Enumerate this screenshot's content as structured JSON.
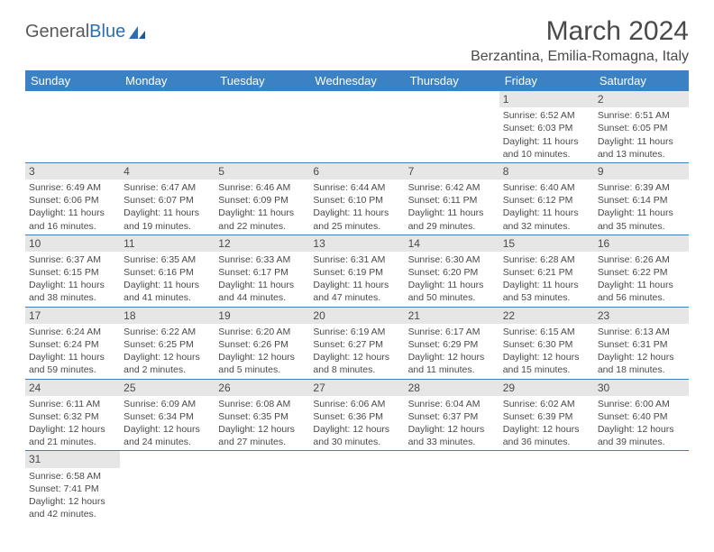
{
  "logo": {
    "text1": "General",
    "text2": "Blue"
  },
  "title": "March 2024",
  "location": "Berzantina, Emilia-Romagna, Italy",
  "colors": {
    "header_bg": "#3b82c4",
    "header_text": "#ffffff",
    "daynum_bg": "#e6e6e6",
    "row_border": "#3b82c4",
    "text": "#4a4a4a",
    "page_bg": "#ffffff",
    "logo_blue": "#2a6fb5"
  },
  "typography": {
    "title_fontsize": 30,
    "location_fontsize": 16,
    "header_fontsize": 13,
    "daynum_fontsize": 12,
    "body_fontsize": 10.5
  },
  "weekdays": [
    "Sunday",
    "Monday",
    "Tuesday",
    "Wednesday",
    "Thursday",
    "Friday",
    "Saturday"
  ],
  "weeks": [
    [
      {
        "n": "",
        "lines": []
      },
      {
        "n": "",
        "lines": []
      },
      {
        "n": "",
        "lines": []
      },
      {
        "n": "",
        "lines": []
      },
      {
        "n": "",
        "lines": []
      },
      {
        "n": "1",
        "lines": [
          "Sunrise: 6:52 AM",
          "Sunset: 6:03 PM",
          "Daylight: 11 hours",
          "and 10 minutes."
        ]
      },
      {
        "n": "2",
        "lines": [
          "Sunrise: 6:51 AM",
          "Sunset: 6:05 PM",
          "Daylight: 11 hours",
          "and 13 minutes."
        ]
      }
    ],
    [
      {
        "n": "3",
        "lines": [
          "Sunrise: 6:49 AM",
          "Sunset: 6:06 PM",
          "Daylight: 11 hours",
          "and 16 minutes."
        ]
      },
      {
        "n": "4",
        "lines": [
          "Sunrise: 6:47 AM",
          "Sunset: 6:07 PM",
          "Daylight: 11 hours",
          "and 19 minutes."
        ]
      },
      {
        "n": "5",
        "lines": [
          "Sunrise: 6:46 AM",
          "Sunset: 6:09 PM",
          "Daylight: 11 hours",
          "and 22 minutes."
        ]
      },
      {
        "n": "6",
        "lines": [
          "Sunrise: 6:44 AM",
          "Sunset: 6:10 PM",
          "Daylight: 11 hours",
          "and 25 minutes."
        ]
      },
      {
        "n": "7",
        "lines": [
          "Sunrise: 6:42 AM",
          "Sunset: 6:11 PM",
          "Daylight: 11 hours",
          "and 29 minutes."
        ]
      },
      {
        "n": "8",
        "lines": [
          "Sunrise: 6:40 AM",
          "Sunset: 6:12 PM",
          "Daylight: 11 hours",
          "and 32 minutes."
        ]
      },
      {
        "n": "9",
        "lines": [
          "Sunrise: 6:39 AM",
          "Sunset: 6:14 PM",
          "Daylight: 11 hours",
          "and 35 minutes."
        ]
      }
    ],
    [
      {
        "n": "10",
        "lines": [
          "Sunrise: 6:37 AM",
          "Sunset: 6:15 PM",
          "Daylight: 11 hours",
          "and 38 minutes."
        ]
      },
      {
        "n": "11",
        "lines": [
          "Sunrise: 6:35 AM",
          "Sunset: 6:16 PM",
          "Daylight: 11 hours",
          "and 41 minutes."
        ]
      },
      {
        "n": "12",
        "lines": [
          "Sunrise: 6:33 AM",
          "Sunset: 6:17 PM",
          "Daylight: 11 hours",
          "and 44 minutes."
        ]
      },
      {
        "n": "13",
        "lines": [
          "Sunrise: 6:31 AM",
          "Sunset: 6:19 PM",
          "Daylight: 11 hours",
          "and 47 minutes."
        ]
      },
      {
        "n": "14",
        "lines": [
          "Sunrise: 6:30 AM",
          "Sunset: 6:20 PM",
          "Daylight: 11 hours",
          "and 50 minutes."
        ]
      },
      {
        "n": "15",
        "lines": [
          "Sunrise: 6:28 AM",
          "Sunset: 6:21 PM",
          "Daylight: 11 hours",
          "and 53 minutes."
        ]
      },
      {
        "n": "16",
        "lines": [
          "Sunrise: 6:26 AM",
          "Sunset: 6:22 PM",
          "Daylight: 11 hours",
          "and 56 minutes."
        ]
      }
    ],
    [
      {
        "n": "17",
        "lines": [
          "Sunrise: 6:24 AM",
          "Sunset: 6:24 PM",
          "Daylight: 11 hours",
          "and 59 minutes."
        ]
      },
      {
        "n": "18",
        "lines": [
          "Sunrise: 6:22 AM",
          "Sunset: 6:25 PM",
          "Daylight: 12 hours",
          "and 2 minutes."
        ]
      },
      {
        "n": "19",
        "lines": [
          "Sunrise: 6:20 AM",
          "Sunset: 6:26 PM",
          "Daylight: 12 hours",
          "and 5 minutes."
        ]
      },
      {
        "n": "20",
        "lines": [
          "Sunrise: 6:19 AM",
          "Sunset: 6:27 PM",
          "Daylight: 12 hours",
          "and 8 minutes."
        ]
      },
      {
        "n": "21",
        "lines": [
          "Sunrise: 6:17 AM",
          "Sunset: 6:29 PM",
          "Daylight: 12 hours",
          "and 11 minutes."
        ]
      },
      {
        "n": "22",
        "lines": [
          "Sunrise: 6:15 AM",
          "Sunset: 6:30 PM",
          "Daylight: 12 hours",
          "and 15 minutes."
        ]
      },
      {
        "n": "23",
        "lines": [
          "Sunrise: 6:13 AM",
          "Sunset: 6:31 PM",
          "Daylight: 12 hours",
          "and 18 minutes."
        ]
      }
    ],
    [
      {
        "n": "24",
        "lines": [
          "Sunrise: 6:11 AM",
          "Sunset: 6:32 PM",
          "Daylight: 12 hours",
          "and 21 minutes."
        ]
      },
      {
        "n": "25",
        "lines": [
          "Sunrise: 6:09 AM",
          "Sunset: 6:34 PM",
          "Daylight: 12 hours",
          "and 24 minutes."
        ]
      },
      {
        "n": "26",
        "lines": [
          "Sunrise: 6:08 AM",
          "Sunset: 6:35 PM",
          "Daylight: 12 hours",
          "and 27 minutes."
        ]
      },
      {
        "n": "27",
        "lines": [
          "Sunrise: 6:06 AM",
          "Sunset: 6:36 PM",
          "Daylight: 12 hours",
          "and 30 minutes."
        ]
      },
      {
        "n": "28",
        "lines": [
          "Sunrise: 6:04 AM",
          "Sunset: 6:37 PM",
          "Daylight: 12 hours",
          "and 33 minutes."
        ]
      },
      {
        "n": "29",
        "lines": [
          "Sunrise: 6:02 AM",
          "Sunset: 6:39 PM",
          "Daylight: 12 hours",
          "and 36 minutes."
        ]
      },
      {
        "n": "30",
        "lines": [
          "Sunrise: 6:00 AM",
          "Sunset: 6:40 PM",
          "Daylight: 12 hours",
          "and 39 minutes."
        ]
      }
    ],
    [
      {
        "n": "31",
        "lines": [
          "Sunrise: 6:58 AM",
          "Sunset: 7:41 PM",
          "Daylight: 12 hours",
          "and 42 minutes."
        ]
      },
      {
        "n": "",
        "lines": []
      },
      {
        "n": "",
        "lines": []
      },
      {
        "n": "",
        "lines": []
      },
      {
        "n": "",
        "lines": []
      },
      {
        "n": "",
        "lines": []
      },
      {
        "n": "",
        "lines": []
      }
    ]
  ]
}
